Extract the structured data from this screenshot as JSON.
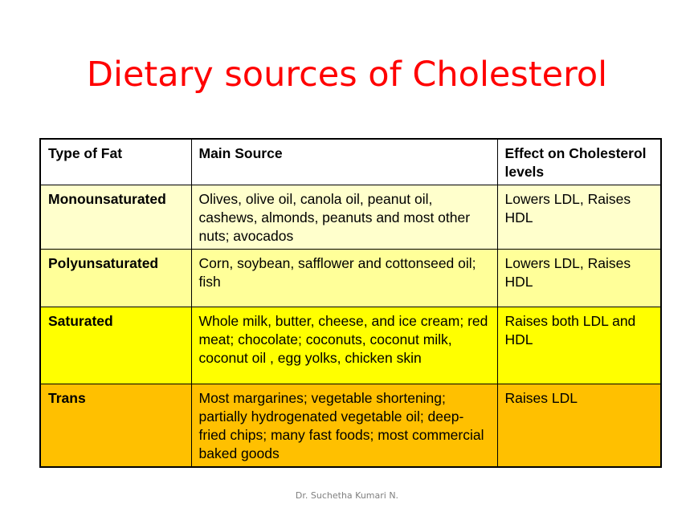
{
  "slide": {
    "title": "Dietary sources of Cholesterol",
    "footer": "Dr. Suchetha Kumari N."
  },
  "table": {
    "headers": [
      "Type of Fat",
      "Main Source",
      "Effect on Cholesterol levels"
    ],
    "rows": [
      {
        "type": "Monounsaturated",
        "source": "Olives, olive oil, canola oil, peanut oil, cashews, almonds, peanuts and most other nuts; avocados",
        "effect": "Lowers LDL, Raises HDL",
        "color": "#ffffcc"
      },
      {
        "type": "Polyunsaturated",
        "source": "Corn, soybean, safflower and cottonseed oil; fish",
        "effect": "Lowers LDL, Raises HDL",
        "color": "#ffff99"
      },
      {
        "type": "Saturated",
        "source": "Whole milk, butter, cheese, and ice cream; red meat; chocolate; coconuts, coconut milk, coconut oil , egg yolks, chicken skin",
        "effect": "Raises both LDL and HDL",
        "color": "#ffff00"
      },
      {
        "type": "Trans",
        "source": "Most margarines; vegetable shortening; partially hydrogenated vegetable oil; deep-fried chips; many fast foods; most commercial baked goods",
        "effect": "Raises LDL",
        "color": "#ffc000"
      }
    ]
  },
  "colors": {
    "title": "#ff0000",
    "footer": "#7f7f7f",
    "border": "#000000"
  }
}
